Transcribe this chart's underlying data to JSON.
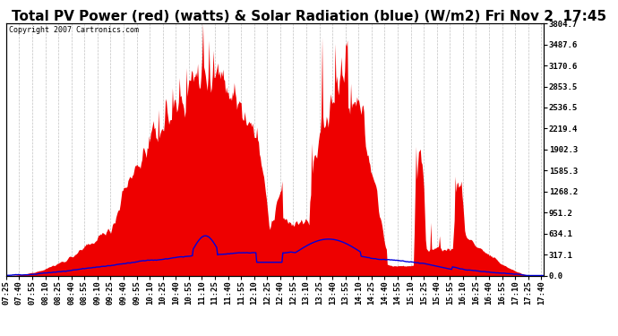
{
  "title": "Total PV Power (red) (watts) & Solar Radiation (blue) (W/m2) Fri Nov 2  17:45",
  "copyright": "Copyright 2007 Cartronics.com",
  "ylabel_right_values": [
    3804.7,
    3487.6,
    3170.6,
    2853.5,
    2536.5,
    2219.4,
    1902.3,
    1585.3,
    1268.2,
    951.2,
    634.1,
    317.1,
    0.0
  ],
  "ymax": 3804.7,
  "ymin": 0.0,
  "bg_color": "#ffffff",
  "plot_bg_color": "#ffffff",
  "grid_color": "#bbbbbb",
  "fill_color": "#ee0000",
  "line_color_blue": "#0000dd",
  "title_fontsize": 11,
  "tick_fontsize": 6.5,
  "copyright_fontsize": 6,
  "x_start_min": 445,
  "x_end_min": 1063
}
